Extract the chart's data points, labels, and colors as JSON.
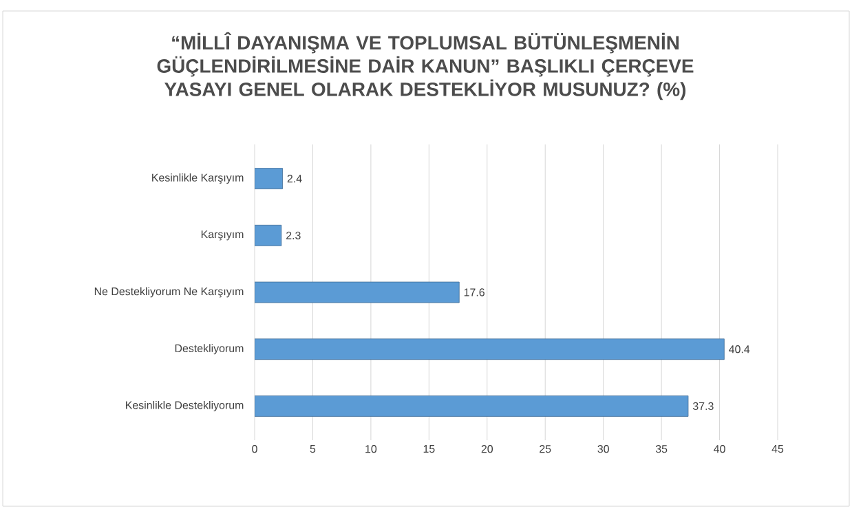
{
  "chart_data": {
    "type": "bar",
    "orientation": "horizontal",
    "title": "“MİLLÎ DAYANIŞMA VE TOPLUMSAL BÜTÜNLEŞMENİN GÜÇLENDİRİLMESİNE DAİR KANUN” BAŞLIKLI ÇERÇEVE YASAYI GENEL OLARAK DESTEKLİYOR MUSUNUZ? (%)",
    "categories": [
      "Kesinlikle Karşıyım",
      "Karşıyım",
      "Ne Destekliyorum Ne Karşıyım",
      "Destekliyorum",
      "Kesinlikle Destekliyorum"
    ],
    "values": [
      2.4,
      2.3,
      17.6,
      40.4,
      37.3
    ],
    "color": "#5b9bd5",
    "xlim": [
      0,
      45
    ],
    "xticks": [
      0,
      5,
      10,
      15,
      20,
      25,
      30,
      35,
      40,
      45
    ],
    "grid": "x",
    "data_labels": true
  }
}
